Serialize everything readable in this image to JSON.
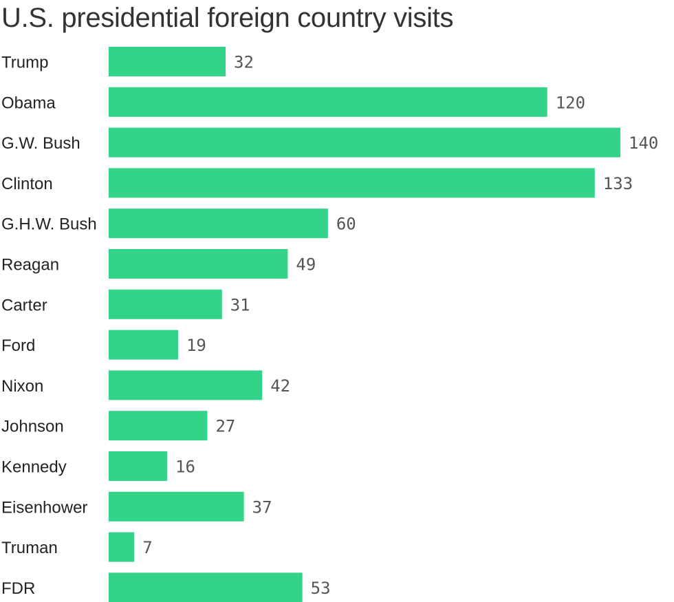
{
  "chart_data": {
    "type": "bar",
    "orientation": "horizontal",
    "title": "U.S. presidential foreign country visits",
    "categories": [
      "Trump",
      "Obama",
      "G.W. Bush",
      "Clinton",
      "G.H.W. Bush",
      "Reagan",
      "Carter",
      "Ford",
      "Nixon",
      "Johnson",
      "Kennedy",
      "Eisenhower",
      "Truman",
      "FDR"
    ],
    "values": [
      32,
      120,
      140,
      133,
      60,
      49,
      31,
      19,
      42,
      27,
      16,
      37,
      7,
      53
    ],
    "xlim": [
      0,
      140
    ],
    "grid": false,
    "bar_color": "#33d389",
    "xlabel": "",
    "ylabel": ""
  }
}
